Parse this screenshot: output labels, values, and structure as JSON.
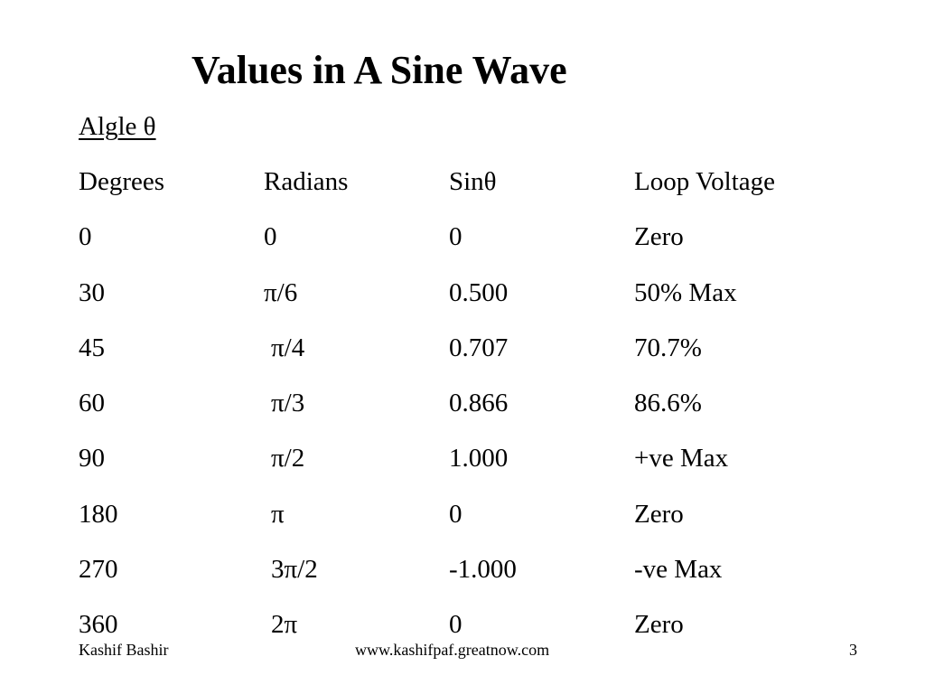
{
  "slide": {
    "title": "Values in A Sine Wave",
    "subheading": "Algle θ"
  },
  "table": {
    "headers": [
      "Degrees",
      "Radians",
      "Sinθ",
      "Loop Voltage"
    ],
    "rows": [
      [
        "0",
        "0",
        "0",
        "Zero"
      ],
      [
        "30",
        "π/6",
        "0.500",
        "50% Max"
      ],
      [
        "45",
        "π/4",
        "0.707",
        "70.7%"
      ],
      [
        "60",
        "π/3",
        "0.866",
        "86.6%"
      ],
      [
        "90",
        "π/2",
        "1.000",
        "+ve Max"
      ],
      [
        "180",
        "π",
        "0",
        "Zero"
      ],
      [
        "270",
        "3π/2",
        "-1.000",
        "-ve Max"
      ],
      [
        "360",
        "2π",
        "0",
        "Zero"
      ]
    ]
  },
  "footer": {
    "author": "Kashif Bashir",
    "url": "www.kashifpaf.greatnow.com",
    "page_number": "3"
  }
}
